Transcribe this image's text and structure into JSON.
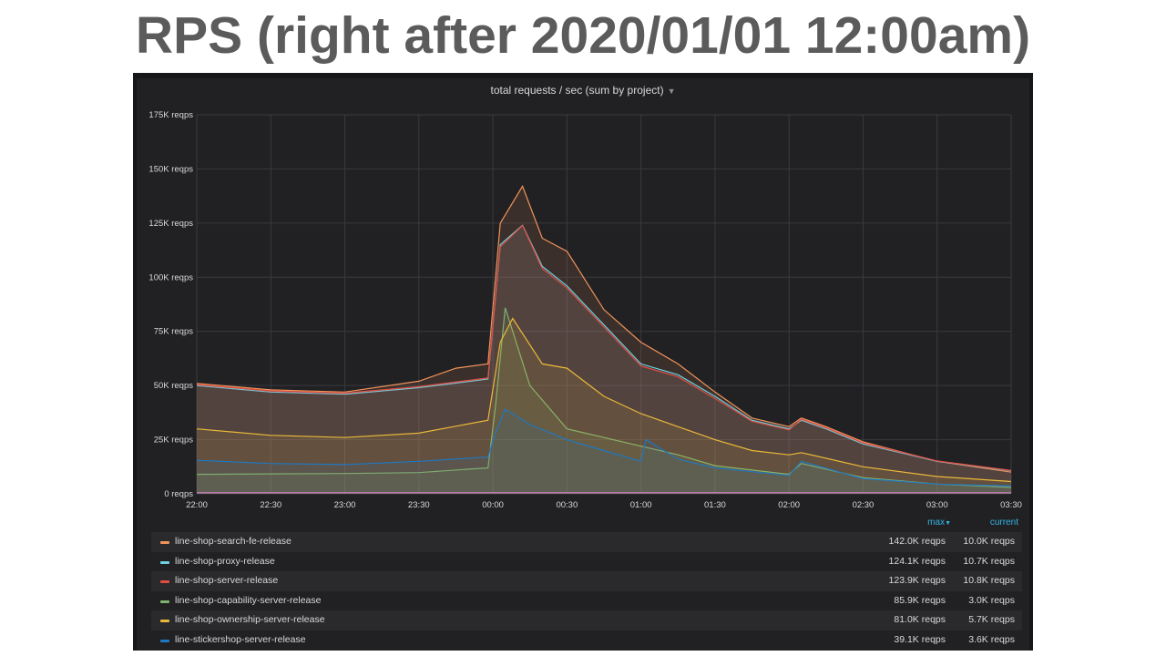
{
  "slide": {
    "title": "RPS (right after 2020/01/01 12:00am)"
  },
  "panel": {
    "title": "total requests / sec (sum by project)",
    "menu_icon": "caret-down-icon"
  },
  "legend": {
    "max_label": "max",
    "max_sort_icon": "caret-down-icon",
    "current_label": "current"
  },
  "chart_data": {
    "type": "area",
    "title": "total requests / sec (sum by project)",
    "x_ticks": [
      "22:00",
      "22:30",
      "23:00",
      "23:30",
      "00:00",
      "00:30",
      "01:00",
      "01:30",
      "02:00",
      "02:30",
      "03:00",
      "03:30"
    ],
    "x_range": [
      "22:00",
      "03:30"
    ],
    "y_ticks": [
      "0 reqps",
      "25K reqps",
      "50K reqps",
      "75K reqps",
      "100K reqps",
      "125K reqps",
      "150K reqps",
      "175K reqps"
    ],
    "ylim": [
      0,
      175000
    ],
    "unit": "reqps",
    "grid": true,
    "legend_position": "bottom",
    "series": [
      {
        "name": "line-shop-search-fe-release",
        "color": "#f2935a",
        "max": "142.0K reqps",
        "current": "10.0K reqps",
        "points": [
          [
            "22:00",
            51000
          ],
          [
            "22:30",
            48000
          ],
          [
            "23:00",
            47000
          ],
          [
            "23:30",
            52000
          ],
          [
            "23:45",
            58000
          ],
          [
            "23:58",
            60000
          ],
          [
            "00:03",
            125000
          ],
          [
            "00:12",
            142000
          ],
          [
            "00:20",
            118000
          ],
          [
            "00:30",
            112000
          ],
          [
            "00:45",
            85000
          ],
          [
            "01:00",
            70000
          ],
          [
            "01:15",
            60000
          ],
          [
            "01:30",
            47000
          ],
          [
            "01:45",
            35000
          ],
          [
            "02:00",
            31000
          ],
          [
            "02:05",
            35000
          ],
          [
            "02:15",
            31000
          ],
          [
            "02:30",
            24000
          ],
          [
            "03:00",
            15000
          ],
          [
            "03:30",
            10000
          ]
        ]
      },
      {
        "name": "line-shop-proxy-release",
        "color": "#6ed0e0",
        "max": "124.1K reqps",
        "current": "10.7K reqps",
        "points": [
          [
            "22:00",
            50000
          ],
          [
            "22:30",
            47000
          ],
          [
            "23:00",
            46000
          ],
          [
            "23:30",
            49000
          ],
          [
            "23:58",
            53000
          ],
          [
            "00:03",
            115000
          ],
          [
            "00:12",
            124000
          ],
          [
            "00:20",
            105000
          ],
          [
            "00:30",
            96000
          ],
          [
            "00:45",
            78000
          ],
          [
            "01:00",
            60000
          ],
          [
            "01:15",
            55000
          ],
          [
            "01:30",
            45000
          ],
          [
            "01:45",
            34000
          ],
          [
            "02:00",
            30000
          ],
          [
            "02:05",
            34000
          ],
          [
            "02:15",
            30000
          ],
          [
            "02:30",
            23000
          ],
          [
            "03:00",
            15000
          ],
          [
            "03:30",
            10700
          ]
        ]
      },
      {
        "name": "line-shop-server-release",
        "color": "#e24d42",
        "max": "123.9K reqps",
        "current": "10.8K reqps",
        "points": [
          [
            "22:00",
            50500
          ],
          [
            "22:30",
            47500
          ],
          [
            "23:00",
            46500
          ],
          [
            "23:30",
            49500
          ],
          [
            "23:58",
            53500
          ],
          [
            "00:03",
            114000
          ],
          [
            "00:12",
            123900
          ],
          [
            "00:20",
            104000
          ],
          [
            "00:30",
            95000
          ],
          [
            "00:45",
            77000
          ],
          [
            "01:00",
            59000
          ],
          [
            "01:15",
            54000
          ],
          [
            "01:30",
            44000
          ],
          [
            "01:45",
            33500
          ],
          [
            "02:00",
            29500
          ],
          [
            "02:05",
            34500
          ],
          [
            "02:15",
            30500
          ],
          [
            "02:30",
            23500
          ],
          [
            "03:00",
            15200
          ],
          [
            "03:30",
            10800
          ]
        ]
      },
      {
        "name": "line-shop-capability-server-release",
        "color": "#7eb26d",
        "max": "85.9K reqps",
        "current": "3.0K reqps",
        "points": [
          [
            "22:00",
            9000
          ],
          [
            "22:30",
            9200
          ],
          [
            "23:00",
            9400
          ],
          [
            "23:30",
            9800
          ],
          [
            "23:58",
            12000
          ],
          [
            "00:01",
            40000
          ],
          [
            "00:05",
            85900
          ],
          [
            "00:15",
            50000
          ],
          [
            "00:30",
            30000
          ],
          [
            "00:45",
            26000
          ],
          [
            "01:00",
            22000
          ],
          [
            "01:15",
            18000
          ],
          [
            "01:30",
            13000
          ],
          [
            "02:00",
            9000
          ],
          [
            "02:05",
            14000
          ],
          [
            "02:30",
            7500
          ],
          [
            "03:00",
            4500
          ],
          [
            "03:30",
            3000
          ]
        ]
      },
      {
        "name": "line-shop-ownership-server-release",
        "color": "#eab839",
        "max": "81.0K reqps",
        "current": "5.7K reqps",
        "points": [
          [
            "22:00",
            30000
          ],
          [
            "22:30",
            27000
          ],
          [
            "23:00",
            26000
          ],
          [
            "23:30",
            28000
          ],
          [
            "23:58",
            34000
          ],
          [
            "00:03",
            70000
          ],
          [
            "00:08",
            81000
          ],
          [
            "00:20",
            60000
          ],
          [
            "00:30",
            58000
          ],
          [
            "00:45",
            45000
          ],
          [
            "01:00",
            37000
          ],
          [
            "01:15",
            31000
          ],
          [
            "01:30",
            25000
          ],
          [
            "01:45",
            20000
          ],
          [
            "02:00",
            18000
          ],
          [
            "02:05",
            19000
          ],
          [
            "02:30",
            12500
          ],
          [
            "03:00",
            8000
          ],
          [
            "03:30",
            5700
          ]
        ]
      },
      {
        "name": "line-stickershop-server-release",
        "color": "#1f78c1",
        "max": "39.1K reqps",
        "current": "3.6K reqps",
        "points": [
          [
            "22:00",
            15500
          ],
          [
            "22:30",
            14000
          ],
          [
            "23:00",
            13500
          ],
          [
            "23:30",
            15000
          ],
          [
            "23:58",
            17000
          ],
          [
            "00:01",
            28000
          ],
          [
            "00:05",
            39100
          ],
          [
            "00:15",
            32000
          ],
          [
            "00:30",
            25000
          ],
          [
            "00:45",
            20000
          ],
          [
            "01:00",
            15000
          ],
          [
            "01:02",
            25000
          ],
          [
            "01:15",
            16000
          ],
          [
            "01:30",
            12000
          ],
          [
            "02:00",
            8500
          ],
          [
            "02:05",
            15000
          ],
          [
            "02:30",
            7000
          ],
          [
            "03:00",
            4500
          ],
          [
            "03:30",
            3600
          ]
        ]
      }
    ],
    "baseline_series": {
      "color": "#d683ce",
      "value": 500
    }
  }
}
